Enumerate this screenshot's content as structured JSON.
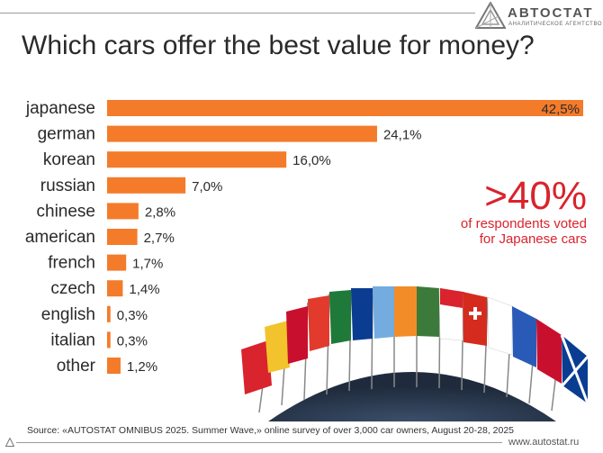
{
  "logo": {
    "name": "АВТОСТАТ",
    "subtitle": "АНАЛИТИЧЕСКОЕ АГЕНТСТВО"
  },
  "title": "Which cars offer the best value for money?",
  "chart_data": {
    "type": "bar",
    "orientation": "horizontal",
    "categories": [
      "japanese",
      "german",
      "korean",
      "russian",
      "chinese",
      "american",
      "french",
      "czech",
      "english",
      "italian",
      "other"
    ],
    "values": [
      42.5,
      24.1,
      16.0,
      7.0,
      2.8,
      2.7,
      1.7,
      1.4,
      0.3,
      0.3,
      1.2
    ],
    "value_labels": [
      "42,5%",
      "24,1%",
      "16,0%",
      "7,0%",
      "2,8%",
      "2,7%",
      "1,7%",
      "1,4%",
      "0,3%",
      "0,3%",
      "1,2%"
    ],
    "title": "Which cars offer the best value for money?",
    "xlim": [
      0,
      42.5
    ],
    "grid": false,
    "bar_color": "#f47b2a"
  },
  "callout": {
    "big": ">40%",
    "line1": "of respondents voted",
    "line2": "for Japanese cars",
    "color": "#d9232d"
  },
  "source": "Source: «AUTOSTAT OMNIBUS 2025. Summer Wave,» online survey of over 3,000 car owners, August 20-28, 2025",
  "url": "www.autostat.ru"
}
